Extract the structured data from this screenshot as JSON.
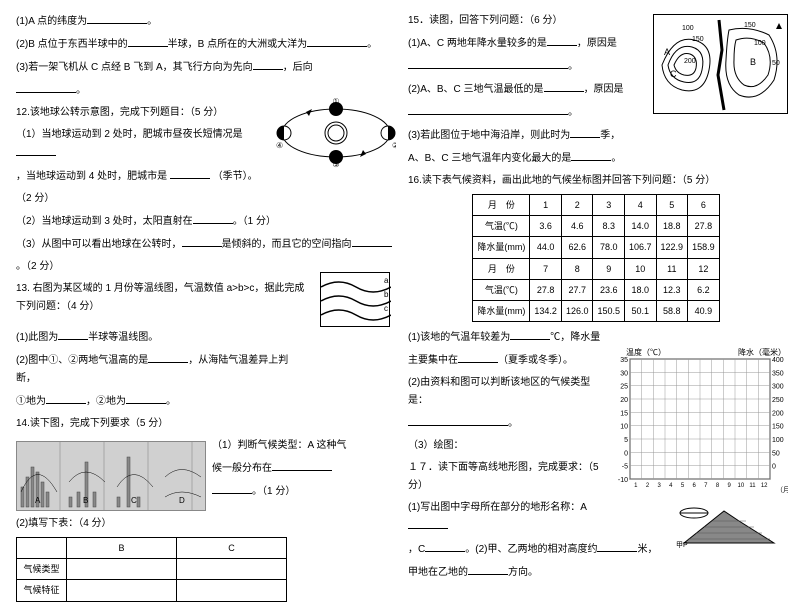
{
  "left": {
    "q1_1": "(1)A 点的纬度为",
    "q1_2a": "(2)B 点位于东西半球中的",
    "q1_2b": "半球，B 点所在的大洲或大洋为",
    "q1_3a": "(3)若一架飞机从 C 点经 B 飞到 A，其飞行方向为先向",
    "q1_3b": "，后向",
    "q12": "12.该地球公转示意图，完成下列题目：（5 分）",
    "q12_1a": "（1）当地球运动到 2 处时，肥城市昼夜长短情况是",
    "q12_1b": "，当地球运动到 4 处时，肥城市是",
    "q12_1c": "（季节）。",
    "q12_1d": "（2 分）",
    "q12_2a": "（2）当地球运动到 3 处时，太阳直射在",
    "q12_2b": "。（1 分）",
    "q12_3a": "（3）从图中可以看出地球在公转时，",
    "q12_3b": "是倾斜的，而且它的空间指向",
    "q12_3c": "。（2 分）",
    "q13": "13. 右图为某区域的 1 月份等温线图，气温数值 a>b>c，据此完成下列问题：（4 分）",
    "q13_1": "(1)此图为",
    "q13_1b": "半球等温线图。",
    "q13_2a": "(2)图中①、②两地气温高的是",
    "q13_2b": "，从海陆气温差异上判断，",
    "q13_2c": "①地为",
    "q13_2d": "，②地为",
    "q14": "14.读下图，完成下列要求（5 分）",
    "q14_1a": "（1）判断气候类型：A 这种气",
    "q14_1b": "候一般分布在",
    "q14_1c": "。（1 分）",
    "q14_2": "(2)填写下表：（4 分）",
    "table_fill": {
      "cols": [
        "",
        "B",
        "C"
      ],
      "rows": [
        "气候类型",
        "气候特征"
      ]
    },
    "chart_labels": [
      "A",
      "B",
      "C",
      "D"
    ]
  },
  "right": {
    "q15": "15．读图，回答下列问题：（6 分）",
    "q15_1a": "(1)A、C 两地年降水量较多的是",
    "q15_1b": "，原因是",
    "q15_2a": "(2)A、B、C 三地气温最低的是",
    "q15_2b": "，原因是",
    "q15_3a": "(3)若此图位于地中海沿岸，则此时为",
    "q15_3b": "季，",
    "q15_3c": "A、B、C 三地气温年内变化最大的是",
    "q16": "16.读下表气候资料，画出此地的气候坐标图并回答下列问题：（5 分）",
    "table16": {
      "header1": [
        "月　份",
        "1",
        "2",
        "3",
        "4",
        "5",
        "6"
      ],
      "temp1": [
        "气温(℃)",
        "3.6",
        "4.6",
        "8.3",
        "14.0",
        "18.8",
        "27.8"
      ],
      "prec1": [
        "降水量(mm)",
        "44.0",
        "62.6",
        "78.0",
        "106.7",
        "122.9",
        "158.9"
      ],
      "header2": [
        "月　份",
        "7",
        "8",
        "9",
        "10",
        "11",
        "12"
      ],
      "temp2": [
        "气温(℃)",
        "27.8",
        "27.7",
        "23.6",
        "18.0",
        "12.3",
        "6.2"
      ],
      "prec2": [
        "降水量(mm)",
        "134.2",
        "126.0",
        "150.5",
        "50.1",
        "58.8",
        "40.9"
      ]
    },
    "q16_1a": "(1)该地的气温年较差为",
    "q16_1b": "℃，降水量",
    "q16_1c": "主要集中在",
    "q16_1d": "（夏季或冬季）。",
    "q16_2a": "(2)由资料和图可以判断该地区的气候类型是：",
    "q16_3": "（3）绘图：",
    "q17": "１７．读下面等高线地形图，完成要求：（5 分）",
    "q17_1a": "(1)写出图中字母所在部分的地形名称：A",
    "q17_1b": "，C",
    "q17_1c": "。(2)甲、乙两地的相对高度约",
    "q17_1d": "米，",
    "q17_1e": "甲地在乙地的",
    "q17_1f": "方向。",
    "grid_axis": {
      "y_left_label": "温度（℃）",
      "y_right_label": "降水（毫米）",
      "y_left_max": 35,
      "y_left_min": -10,
      "y_right_max": 400,
      "y_right_step": 50,
      "x_label": "（月）"
    },
    "contour_values": [
      "100",
      "150",
      "200",
      "150",
      "100",
      "50"
    ],
    "contour_labels": [
      "A",
      "B",
      "C"
    ]
  }
}
